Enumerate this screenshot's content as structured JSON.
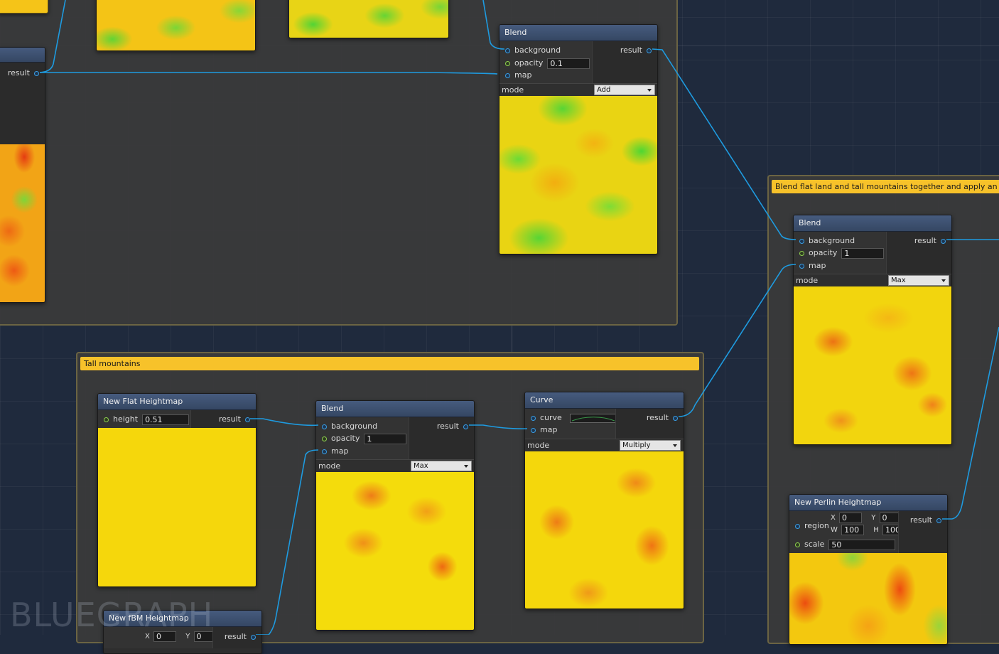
{
  "brand": "BLUEGRAPH",
  "groups": {
    "upper_title": "",
    "tall_mountains_title": "Tall mountains",
    "blend_title": "Blend flat land and tall mountains together and apply an o"
  },
  "partial_left_node": {
    "result_label": "result"
  },
  "blend_top": {
    "title": "Blend",
    "background_label": "background",
    "opacity_label": "opacity",
    "opacity_value": "0.1",
    "map_label": "map",
    "result_label": "result",
    "mode_label": "mode",
    "mode_value": "Add"
  },
  "blend_right": {
    "title": "Blend",
    "background_label": "background",
    "opacity_label": "opacity",
    "opacity_value": "1",
    "map_label": "map",
    "result_label": "result",
    "mode_label": "mode",
    "mode_value": "Max"
  },
  "flat_heightmap": {
    "title": "New Flat Heightmap",
    "height_label": "height",
    "height_value": "0.51",
    "result_label": "result"
  },
  "blend_bottom": {
    "title": "Blend",
    "background_label": "background",
    "opacity_label": "opacity",
    "opacity_value": "1",
    "map_label": "map",
    "result_label": "result",
    "mode_label": "mode",
    "mode_value": "Max"
  },
  "curve_node": {
    "title": "Curve",
    "curve_label": "curve",
    "map_label": "map",
    "result_label": "result",
    "mode_label": "mode",
    "mode_value": "Multiply"
  },
  "perlin_node": {
    "title": "New Perlin Heightmap",
    "region_label": "region",
    "x_label": "X",
    "x_value": "0",
    "y_label": "Y",
    "y_value": "0",
    "w_label": "W",
    "w_value": "100",
    "h_label": "H",
    "h_value": "100",
    "scale_label": "scale",
    "scale_value": "50",
    "result_label": "result"
  },
  "fbm_node": {
    "title": "New fBM Heightmap",
    "x_label": "X",
    "x_value": "0",
    "y_label": "Y",
    "y_value": "0",
    "result_label": "result"
  },
  "colors": {
    "wire": "#1e9be0",
    "group_title": "#f7c22a",
    "node_header": "#3e5170",
    "background": "#1f2a3d"
  }
}
